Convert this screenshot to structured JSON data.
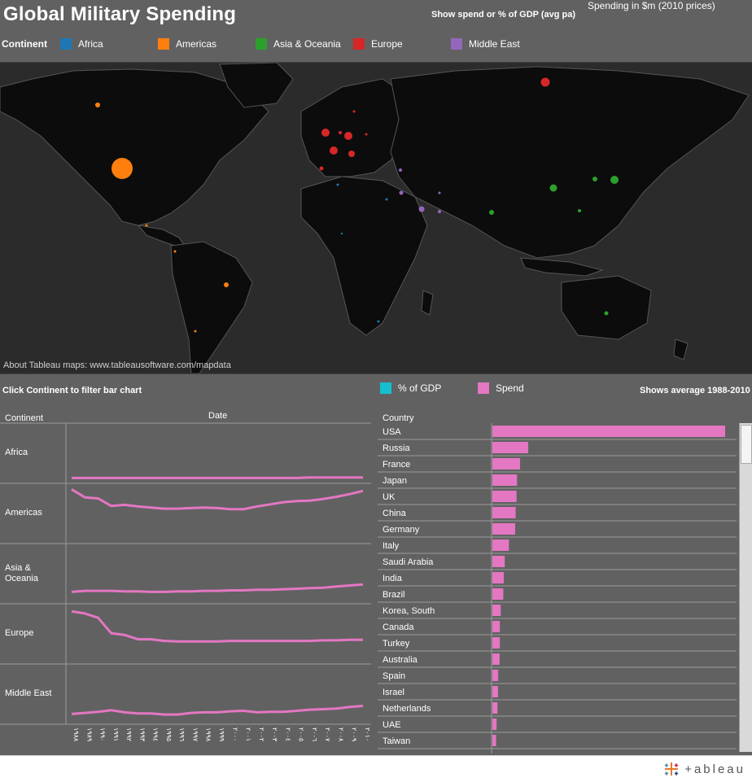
{
  "header": {
    "title": "Global Military Spending",
    "gdp_toggle": "Show spend or % of GDP (avg pa)",
    "spend_param": "Spending in $m (2010 prices)",
    "continent_label": "Continent"
  },
  "legend": [
    {
      "name": "Africa",
      "color": "#1f77b4"
    },
    {
      "name": "Americas",
      "color": "#ff7f0e"
    },
    {
      "name": "Asia & Oceania",
      "color": "#2ca02c"
    },
    {
      "name": "Europe",
      "color": "#d62728"
    },
    {
      "name": "Middle East",
      "color": "#9467bd"
    }
  ],
  "map": {
    "attribution": "About Tableau maps: www.tableausoftware.com/mapdata"
  },
  "panel": {
    "filter_hint": "Click Continent to filter bar chart",
    "measure_gdp": "% of GDP",
    "measure_spend": "Spend",
    "avg_note": "Shows average 1988-2010",
    "gdp_color": "#17becf",
    "spend_color": "#e377c2"
  },
  "line_chart": {
    "col_continent": "Continent",
    "col_date": "Date",
    "rows": [
      "Africa",
      "Americas",
      "Asia & Oceania",
      "Europe",
      "Middle East"
    ]
  },
  "chart_data": [
    {
      "type": "line",
      "xlabel": "Date",
      "ylabel": "",
      "x": [
        "١٩٨٨",
        "١٩٨٩",
        "١٩٩٠",
        "١٩٩١",
        "١٩٩٢",
        "١٩٩٣",
        "١٩٩٤",
        "١٩٩٥",
        "١٩٩٦",
        "١٩٩٧",
        "١٩٩٨",
        "١٩٩٩",
        "٢٠٠٠",
        "٢٠٠١",
        "٢٠٠٢",
        "٢٠٠٣",
        "٢٠٠٤",
        "٢٠٠٥",
        "٢٠٠٦",
        "٢٠٠٧",
        "٢٠٠٨",
        "٢٠٠٩",
        "٢٠١٠"
      ],
      "series": [
        {
          "name": "Africa",
          "values": [
            0.04,
            0.04,
            0.04,
            0.04,
            0.04,
            0.04,
            0.04,
            0.04,
            0.04,
            0.04,
            0.04,
            0.04,
            0.04,
            0.04,
            0.04,
            0.04,
            0.04,
            0.04,
            0.05,
            0.05,
            0.05,
            0.05,
            0.05
          ]
        },
        {
          "name": "Americas",
          "values": [
            0.95,
            0.8,
            0.78,
            0.64,
            0.66,
            0.63,
            0.61,
            0.59,
            0.59,
            0.6,
            0.61,
            0.6,
            0.58,
            0.58,
            0.63,
            0.67,
            0.71,
            0.73,
            0.74,
            0.77,
            0.81,
            0.86,
            0.92
          ]
        },
        {
          "name": "Asia & Oceania",
          "values": [
            0.16,
            0.18,
            0.18,
            0.18,
            0.17,
            0.17,
            0.16,
            0.16,
            0.17,
            0.17,
            0.18,
            0.18,
            0.19,
            0.19,
            0.2,
            0.2,
            0.21,
            0.22,
            0.23,
            0.24,
            0.26,
            0.28,
            0.3
          ]
        },
        {
          "name": "Europe",
          "values": [
            0.92,
            0.88,
            0.8,
            0.51,
            0.48,
            0.4,
            0.4,
            0.37,
            0.36,
            0.36,
            0.36,
            0.36,
            0.37,
            0.37,
            0.37,
            0.37,
            0.37,
            0.37,
            0.37,
            0.38,
            0.38,
            0.39,
            0.39
          ]
        },
        {
          "name": "Middle East",
          "values": [
            0.13,
            0.15,
            0.17,
            0.2,
            0.16,
            0.14,
            0.14,
            0.12,
            0.12,
            0.15,
            0.16,
            0.16,
            0.18,
            0.19,
            0.16,
            0.17,
            0.17,
            0.19,
            0.21,
            0.22,
            0.23,
            0.26,
            0.28
          ]
        }
      ]
    },
    {
      "type": "bar",
      "xlabel": "",
      "ylabel": "Country",
      "categories": [
        "USA",
        "Russia",
        "France",
        "Japan",
        "UK",
        "China",
        "Germany",
        "Italy",
        "Saudi Arabia",
        "India",
        "Brazil",
        "Korea, South",
        "Canada",
        "Turkey",
        "Australia",
        "Spain",
        "Israel",
        "Netherlands",
        "UAE",
        "Taiwan"
      ],
      "values": [
        100,
        15.4,
        11.9,
        10.6,
        10.4,
        10.0,
        9.8,
        7.1,
        5.3,
        4.9,
        4.7,
        3.6,
        3.2,
        3.2,
        3.1,
        2.5,
        2.4,
        2.2,
        1.8,
        1.6
      ]
    }
  ]
}
